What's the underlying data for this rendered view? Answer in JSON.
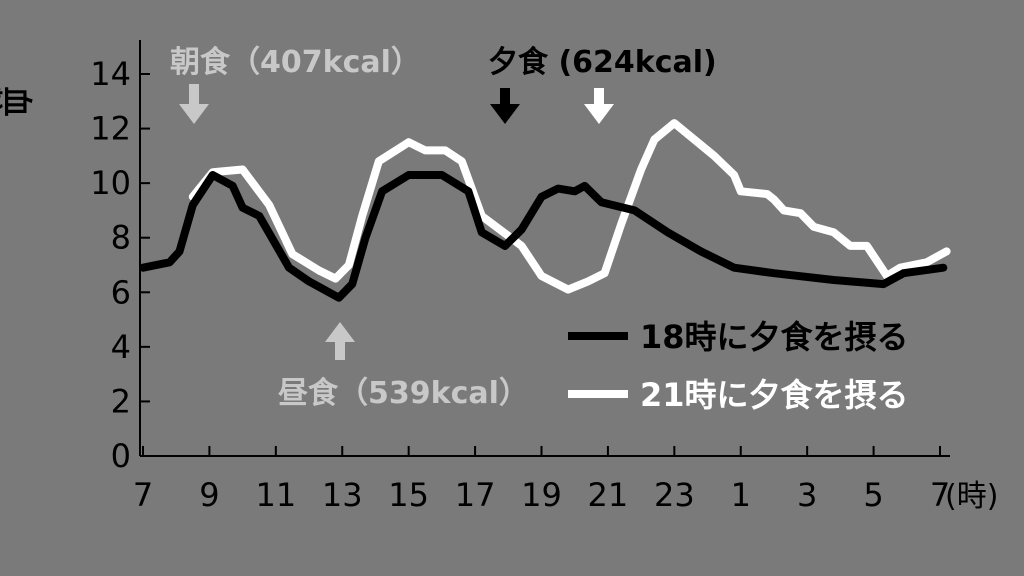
{
  "chart_data": {
    "type": "line",
    "ylabel": "血糖値（mmol/L）",
    "xunit": "(時)",
    "ylim": [
      0,
      15
    ],
    "yticks": [
      0,
      2,
      4,
      6,
      8,
      10,
      12,
      14
    ],
    "xticks": [
      {
        "hour": 7,
        "label": "7"
      },
      {
        "hour": 9,
        "label": "9"
      },
      {
        "hour": 11,
        "label": "11"
      },
      {
        "hour": 13,
        "label": "13"
      },
      {
        "hour": 15,
        "label": "15"
      },
      {
        "hour": 17,
        "label": "17"
      },
      {
        "hour": 19,
        "label": "19"
      },
      {
        "hour": 21,
        "label": "21"
      },
      {
        "hour": 23,
        "label": "23"
      },
      {
        "hour": 25,
        "label": "1"
      },
      {
        "hour": 27,
        "label": "3"
      },
      {
        "hour": 29,
        "label": "5"
      },
      {
        "hour": 31,
        "label": "7"
      }
    ],
    "grid": false,
    "series": [
      {
        "name": "18時に夕食を摂る",
        "color": "#000000",
        "points": [
          [
            7,
            6.9
          ],
          [
            7.8,
            7.1
          ],
          [
            8.1,
            7.5
          ],
          [
            8.5,
            9.2
          ],
          [
            9.1,
            10.3
          ],
          [
            9.7,
            9.9
          ],
          [
            10.0,
            9.1
          ],
          [
            10.5,
            8.8
          ],
          [
            11.4,
            6.9
          ],
          [
            12.0,
            6.4
          ],
          [
            12.9,
            5.8
          ],
          [
            13.3,
            6.3
          ],
          [
            13.7,
            8.0
          ],
          [
            14.2,
            9.7
          ],
          [
            15.0,
            10.3
          ],
          [
            16.0,
            10.3
          ],
          [
            16.8,
            9.7
          ],
          [
            17.2,
            8.2
          ],
          [
            17.9,
            7.7
          ],
          [
            18.4,
            8.3
          ],
          [
            19.0,
            9.5
          ],
          [
            19.5,
            9.8
          ],
          [
            20.0,
            9.7
          ],
          [
            20.3,
            9.9
          ],
          [
            20.8,
            9.3
          ],
          [
            21.8,
            9.0
          ],
          [
            22.8,
            8.2
          ],
          [
            23.8,
            7.5
          ],
          [
            24.8,
            6.9
          ],
          [
            26.0,
            6.7
          ],
          [
            27.8,
            6.45
          ],
          [
            29.3,
            6.3
          ],
          [
            29.9,
            6.7
          ],
          [
            31.1,
            6.9
          ]
        ]
      },
      {
        "name": "21時に夕食を摂る",
        "color": "#ffffff",
        "points": [
          [
            8.5,
            9.5
          ],
          [
            9.1,
            10.4
          ],
          [
            10.0,
            10.5
          ],
          [
            10.8,
            9.2
          ],
          [
            11.5,
            7.4
          ],
          [
            12.3,
            6.8
          ],
          [
            12.8,
            6.5
          ],
          [
            13.2,
            7.0
          ],
          [
            13.6,
            8.8
          ],
          [
            14.1,
            10.8
          ],
          [
            15.0,
            11.5
          ],
          [
            15.5,
            11.2
          ],
          [
            16.1,
            11.2
          ],
          [
            16.6,
            10.8
          ],
          [
            17.2,
            8.8
          ],
          [
            18.4,
            7.7
          ],
          [
            19.0,
            6.6
          ],
          [
            19.8,
            6.1
          ],
          [
            20.4,
            6.4
          ],
          [
            20.9,
            6.7
          ],
          [
            21.4,
            8.5
          ],
          [
            22.0,
            10.5
          ],
          [
            22.4,
            11.6
          ],
          [
            23.0,
            12.2
          ],
          [
            24.2,
            11.0
          ],
          [
            24.8,
            10.3
          ],
          [
            25.0,
            9.7
          ],
          [
            25.8,
            9.6
          ],
          [
            26.0,
            9.4
          ],
          [
            26.3,
            9.0
          ],
          [
            26.8,
            8.9
          ],
          [
            27.2,
            8.4
          ],
          [
            27.8,
            8.2
          ],
          [
            28.3,
            7.7
          ],
          [
            28.8,
            7.7
          ],
          [
            29.4,
            6.6
          ],
          [
            29.8,
            6.9
          ],
          [
            30.6,
            7.1
          ],
          [
            31.2,
            7.5
          ]
        ]
      }
    ],
    "annotations": {
      "breakfast": {
        "label": "朝食（407kcal）",
        "color": "#c8c8c8"
      },
      "lunch": {
        "label": "昼食（539kcal）",
        "color": "#c8c8c8"
      },
      "dinner": {
        "label": "夕食 (624kcal)",
        "color": "#000000"
      }
    }
  }
}
